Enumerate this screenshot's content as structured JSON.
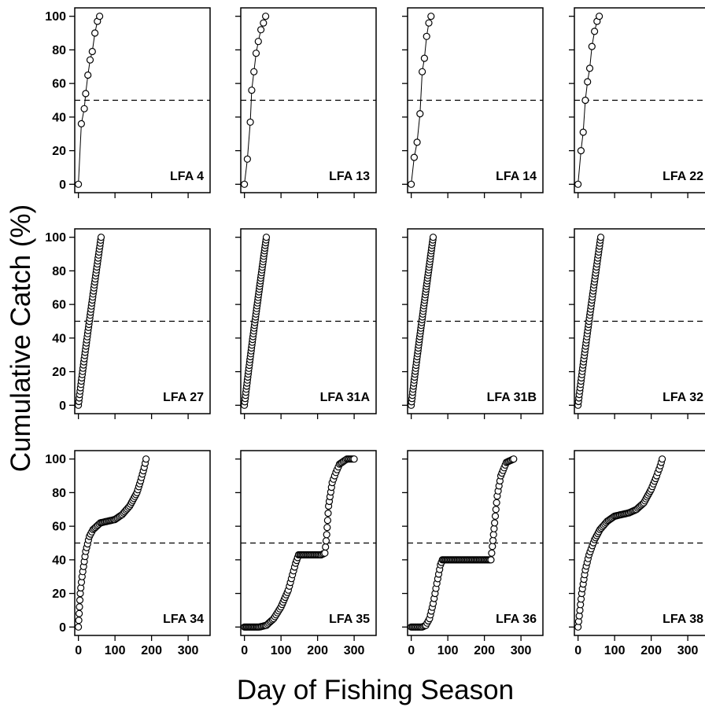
{
  "figure": {
    "ylabel": "Cumulative Catch (%)",
    "xlabel": "Day of Fishing Season"
  },
  "chart_data": [
    {
      "type": "scatter",
      "title": "LFA 4",
      "shape": "steep",
      "x": [
        0,
        8,
        16,
        20,
        26,
        32,
        38,
        45,
        52,
        58
      ],
      "y": [
        0,
        36,
        45,
        54,
        65,
        74,
        79,
        90,
        97,
        100
      ],
      "xlim": [
        -10,
        360
      ],
      "ylim": [
        -5,
        105
      ],
      "xticks": [
        0,
        100,
        200,
        300
      ],
      "yticks": [
        0,
        20,
        40,
        60,
        80,
        100
      ],
      "reference_line": 50
    },
    {
      "type": "scatter",
      "title": "LFA 13",
      "shape": "steep",
      "x": [
        0,
        8,
        16,
        20,
        26,
        32,
        38,
        45,
        52,
        58
      ],
      "y": [
        0,
        15,
        37,
        56,
        67,
        78,
        85,
        92,
        96,
        100
      ],
      "xlim": [
        -10,
        360
      ],
      "ylim": [
        -5,
        105
      ],
      "xticks": [
        0,
        100,
        200,
        300
      ],
      "yticks": [
        0,
        20,
        40,
        60,
        80,
        100
      ],
      "reference_line": 50
    },
    {
      "type": "scatter",
      "title": "LFA 14",
      "shape": "steep",
      "x": [
        0,
        8,
        16,
        24,
        30,
        36,
        42,
        48,
        54
      ],
      "y": [
        0,
        16,
        25,
        42,
        67,
        75,
        88,
        96,
        100
      ],
      "xlim": [
        -10,
        360
      ],
      "ylim": [
        -5,
        105
      ],
      "xticks": [
        0,
        100,
        200,
        300
      ],
      "yticks": [
        0,
        20,
        40,
        60,
        80,
        100
      ],
      "reference_line": 50
    },
    {
      "type": "scatter",
      "title": "LFA 22",
      "shape": "steep",
      "x": [
        0,
        8,
        14,
        20,
        26,
        32,
        38,
        45,
        52,
        58
      ],
      "y": [
        0,
        20,
        31,
        50,
        61,
        69,
        82,
        91,
        97,
        100
      ],
      "xlim": [
        -10,
        360
      ],
      "ylim": [
        -5,
        105
      ],
      "xticks": [
        0,
        100,
        200,
        300
      ],
      "yticks": [
        0,
        20,
        40,
        60,
        80,
        100
      ],
      "reference_line": 50
    },
    {
      "type": "scatter",
      "title": "LFA 27",
      "shape": "linear",
      "x_range": [
        0,
        62
      ],
      "n_points": 55,
      "xlim": [
        -10,
        360
      ],
      "ylim": [
        -5,
        105
      ],
      "xticks": [
        0,
        100,
        200,
        300
      ],
      "yticks": [
        0,
        20,
        40,
        60,
        80,
        100
      ],
      "reference_line": 50
    },
    {
      "type": "scatter",
      "title": "LFA 31A",
      "shape": "linear",
      "x_range": [
        0,
        60
      ],
      "n_points": 60,
      "xlim": [
        -10,
        360
      ],
      "ylim": [
        -5,
        105
      ],
      "xticks": [
        0,
        100,
        200,
        300
      ],
      "yticks": [
        0,
        20,
        40,
        60,
        80,
        100
      ],
      "reference_line": 50
    },
    {
      "type": "scatter",
      "title": "LFA 31B",
      "shape": "linear",
      "x_range": [
        0,
        60
      ],
      "n_points": 60,
      "xlim": [
        -10,
        360
      ],
      "ylim": [
        -5,
        105
      ],
      "xticks": [
        0,
        100,
        200,
        300
      ],
      "yticks": [
        0,
        20,
        40,
        60,
        80,
        100
      ],
      "reference_line": 50
    },
    {
      "type": "scatter",
      "title": "LFA 32",
      "shape": "linear",
      "x_range": [
        0,
        62
      ],
      "n_points": 55,
      "xlim": [
        -10,
        360
      ],
      "ylim": [
        -5,
        105
      ],
      "xticks": [
        0,
        100,
        200,
        300
      ],
      "yticks": [
        0,
        20,
        40,
        60,
        80,
        100
      ],
      "reference_line": 50
    },
    {
      "type": "scatter",
      "title": "LFA 34",
      "shape": "plateau",
      "x": [
        0,
        5,
        10,
        20,
        30,
        40,
        50,
        60,
        80,
        100,
        120,
        140,
        160,
        170,
        180,
        185
      ],
      "y": [
        0,
        20,
        30,
        45,
        54,
        58,
        60,
        62,
        63,
        64,
        67,
        72,
        80,
        87,
        95,
        100
      ],
      "xlim": [
        -10,
        360
      ],
      "ylim": [
        -5,
        105
      ],
      "xticks": [
        0,
        100,
        200,
        300
      ],
      "yticks": [
        0,
        20,
        40,
        60,
        80,
        100
      ],
      "reference_line": 50
    },
    {
      "type": "scatter",
      "title": "LFA 35",
      "shape": "two_stage",
      "x": [
        0,
        40,
        60,
        80,
        100,
        120,
        140,
        148,
        210,
        220,
        225,
        230,
        240,
        250,
        260,
        280,
        300
      ],
      "y": [
        0,
        0,
        1,
        5,
        12,
        22,
        38,
        43,
        43,
        44,
        55,
        72,
        86,
        92,
        97,
        100,
        100
      ],
      "xlim": [
        -10,
        360
      ],
      "ylim": [
        -5,
        105
      ],
      "xticks": [
        0,
        100,
        200,
        300
      ],
      "yticks": [
        0,
        20,
        40,
        60,
        80,
        100
      ],
      "reference_line": 50
    },
    {
      "type": "scatter",
      "title": "LFA 36",
      "shape": "two_stage",
      "x": [
        0,
        30,
        40,
        50,
        60,
        70,
        80,
        85,
        218,
        222,
        228,
        235,
        245,
        260,
        280
      ],
      "y": [
        0,
        0,
        1,
        5,
        14,
        26,
        37,
        40,
        40,
        48,
        62,
        78,
        90,
        98,
        100
      ],
      "xlim": [
        -10,
        360
      ],
      "ylim": [
        -5,
        105
      ],
      "xticks": [
        0,
        100,
        200,
        300
      ],
      "yticks": [
        0,
        20,
        40,
        60,
        80,
        100
      ],
      "reference_line": 50
    },
    {
      "type": "scatter",
      "title": "LFA 38",
      "shape": "plateau",
      "x": [
        0,
        5,
        10,
        20,
        30,
        45,
        60,
        80,
        100,
        120,
        140,
        160,
        180,
        200,
        215,
        225,
        230
      ],
      "y": [
        0,
        10,
        20,
        34,
        43,
        52,
        58,
        63,
        66,
        67,
        68,
        70,
        74,
        82,
        90,
        96,
        100
      ],
      "xlim": [
        -10,
        360
      ],
      "ylim": [
        -5,
        105
      ],
      "xticks": [
        0,
        100,
        200,
        300
      ],
      "yticks": [
        0,
        20,
        40,
        60,
        80,
        100
      ],
      "reference_line": 50
    }
  ]
}
